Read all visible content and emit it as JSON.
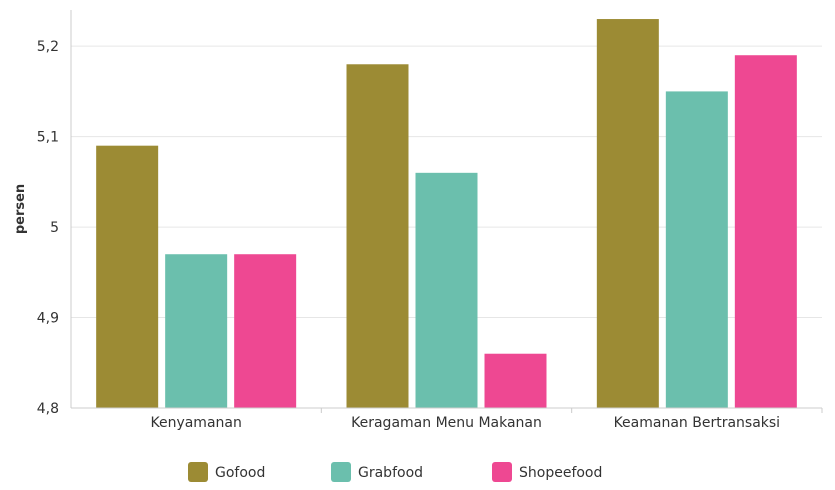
{
  "chart_data": {
    "type": "bar",
    "title": "",
    "xlabel": "",
    "ylabel": "persen",
    "categories": [
      "Kenyamanan",
      "Keragaman Menu Makanan",
      "Keamanan Bertransaksi"
    ],
    "series": [
      {
        "name": "Gofood",
        "color": "#9C8B34",
        "values": [
          5.09,
          5.18,
          5.23
        ]
      },
      {
        "name": "Grabfood",
        "color": "#6BBFAD",
        "values": [
          4.97,
          5.06,
          5.15
        ]
      },
      {
        "name": "Shopeefood",
        "color": "#EE4892",
        "values": [
          4.97,
          4.86,
          5.19
        ]
      }
    ],
    "ylim": [
      4.8,
      5.24
    ],
    "yticks": [
      4.8,
      4.9,
      5,
      5.1,
      5.2
    ],
    "ytick_labels": [
      "4,8",
      "4,9",
      "5",
      "5,1",
      "5,2"
    ],
    "grid": true,
    "legend_position": "bottom"
  }
}
